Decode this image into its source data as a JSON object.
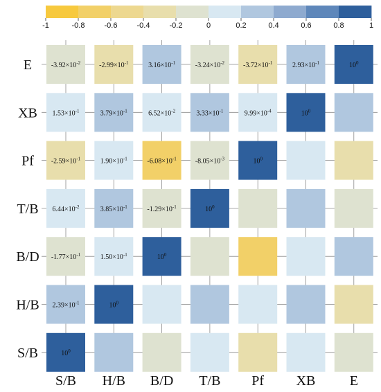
{
  "chart_data": {
    "type": "heatmap",
    "title": "",
    "xlabel": "",
    "ylabel": "",
    "x_categories": [
      "S/B",
      "H/B",
      "B/D",
      "T/B",
      "Pf",
      "XB",
      "E"
    ],
    "y_categories": [
      "E",
      "XB",
      "Pf",
      "T/B",
      "B/D",
      "H/B",
      "S/B"
    ],
    "colorbar": {
      "range": [
        -1,
        1
      ],
      "ticks": [
        "-1",
        "-0.8",
        "-0.6",
        "-0.4",
        "-0.2",
        "0",
        "0.2",
        "0.4",
        "0.6",
        "0.8",
        "1"
      ],
      "bins": [
        {
          "from": -1.0,
          "to": -0.8,
          "color": "#F7C93E"
        },
        {
          "from": -0.8,
          "to": -0.6,
          "color": "#F2D068"
        },
        {
          "from": -0.6,
          "to": -0.4,
          "color": "#EDD890"
        },
        {
          "from": -0.4,
          "to": -0.2,
          "color": "#E8DEAC"
        },
        {
          "from": -0.2,
          "to": 0.0,
          "color": "#DEE2D0"
        },
        {
          "from": 0.0,
          "to": 0.2,
          "color": "#D8E8F2"
        },
        {
          "from": 0.2,
          "to": 0.4,
          "color": "#B0C7DF"
        },
        {
          "from": 0.4,
          "to": 0.6,
          "color": "#8EAACF"
        },
        {
          "from": 0.6,
          "to": 0.8,
          "color": "#5E87BA"
        },
        {
          "from": 0.8,
          "to": 1.0,
          "color": "#2E5F9C"
        }
      ]
    },
    "values": [
      [
        -0.0392,
        -0.299,
        0.316,
        -0.0324,
        -0.372,
        0.293,
        1
      ],
      [
        0.153,
        0.379,
        0.0652,
        0.333,
        0.000999,
        1,
        0.293
      ],
      [
        -0.259,
        0.19,
        -0.608,
        -0.00805,
        1,
        0.000999,
        -0.372
      ],
      [
        0.0644,
        0.385,
        -0.129,
        1,
        -0.00805,
        0.333,
        -0.0324
      ],
      [
        -0.177,
        0.15,
        1,
        -0.129,
        -0.608,
        0.0652,
        0.316
      ],
      [
        0.239,
        1,
        0.15,
        0.385,
        0.19,
        0.379,
        -0.299
      ],
      [
        1,
        0.239,
        -0.177,
        0.0644,
        -0.259,
        0.153,
        -0.0392
      ]
    ],
    "labels": [
      [
        {
          "m": "-3.92",
          "e": "-2"
        },
        {
          "m": "-2.99",
          "e": "-1"
        },
        {
          "m": "3.16",
          "e": "-1"
        },
        {
          "m": "-3.24",
          "e": "-2"
        },
        {
          "m": "-3.72",
          "e": "-1"
        },
        {
          "m": "2.93",
          "e": "-1"
        },
        {
          "m": "",
          "e": "0"
        }
      ],
      [
        {
          "m": "1.53",
          "e": "-1"
        },
        {
          "m": "3.79",
          "e": "-1"
        },
        {
          "m": "6.52",
          "e": "-2"
        },
        {
          "m": "3.33",
          "e": "-1"
        },
        {
          "m": "9.99",
          "e": "-4"
        },
        {
          "m": "",
          "e": "0"
        },
        null
      ],
      [
        {
          "m": "-2.59",
          "e": "-1"
        },
        {
          "m": "1.90",
          "e": "-1"
        },
        {
          "m": "-6.08",
          "e": "-1"
        },
        {
          "m": "-8.05",
          "e": "-3"
        },
        {
          "m": "",
          "e": "0"
        },
        null,
        null
      ],
      [
        {
          "m": "6.44",
          "e": "-2"
        },
        {
          "m": "3.85",
          "e": "-1"
        },
        {
          "m": "-1.29",
          "e": "-1"
        },
        {
          "m": "",
          "e": "0"
        },
        null,
        null,
        null
      ],
      [
        {
          "m": "-1.77",
          "e": "-1"
        },
        {
          "m": "1.50",
          "e": "-1"
        },
        {
          "m": "",
          "e": "0"
        },
        null,
        null,
        null,
        null
      ],
      [
        {
          "m": "2.39",
          "e": "-1"
        },
        {
          "m": "",
          "e": "0"
        },
        null,
        null,
        null,
        null,
        null
      ],
      [
        {
          "m": "",
          "e": "0"
        },
        null,
        null,
        null,
        null,
        null,
        null
      ]
    ],
    "grid": true,
    "legend": "top"
  }
}
